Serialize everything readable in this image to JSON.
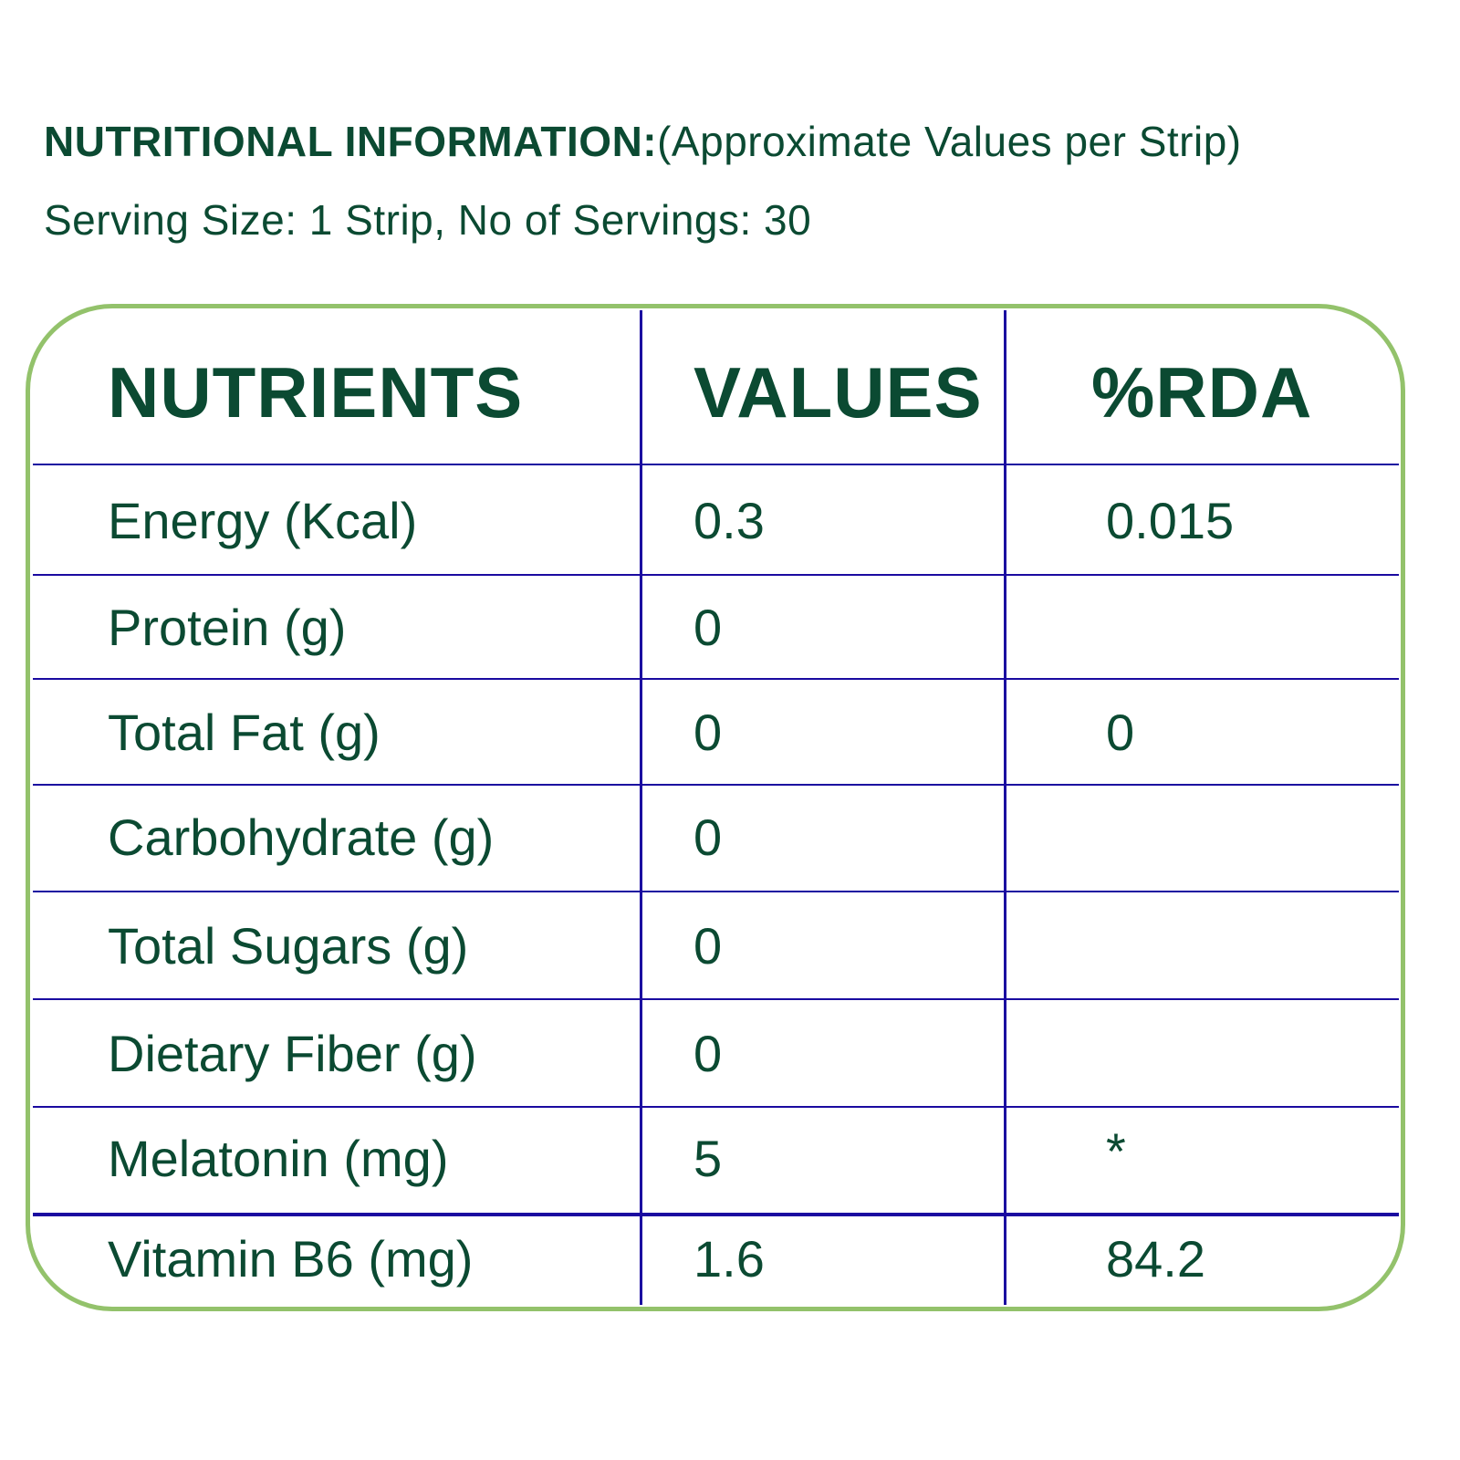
{
  "heading": {
    "bold": "NUTRITIONAL INFORMATION:",
    "normal": "(Approximate Values per Strip)"
  },
  "serving": "Serving Size: 1 Strip, No of Servings: 30",
  "table": {
    "headers": [
      "NUTRIENTS",
      "VALUES",
      "%RDA"
    ],
    "rows": [
      {
        "nutrient": "Energy (Kcal)",
        "value": "0.3",
        "rda": "0.015"
      },
      {
        "nutrient": "Protein (g)",
        "value": "0",
        "rda": ""
      },
      {
        "nutrient": "Total Fat (g)",
        "value": "0",
        "rda": "0"
      },
      {
        "nutrient": "Carbohydrate (g)",
        "value": "0",
        "rda": ""
      },
      {
        "nutrient": "Total Sugars (g)",
        "value": "0",
        "rda": ""
      },
      {
        "nutrient": "Dietary Fiber (g)",
        "value": "0",
        "rda": ""
      },
      {
        "nutrient": "Melatonin (mg)",
        "value": "5",
        "rda": "*"
      },
      {
        "nutrient": "Vitamin B6 (mg)",
        "value": "1.6",
        "rda": "84.2"
      }
    ]
  },
  "colors": {
    "text": "#0b4a32",
    "border": "#93c26b",
    "grid": "#1a0aa0"
  }
}
